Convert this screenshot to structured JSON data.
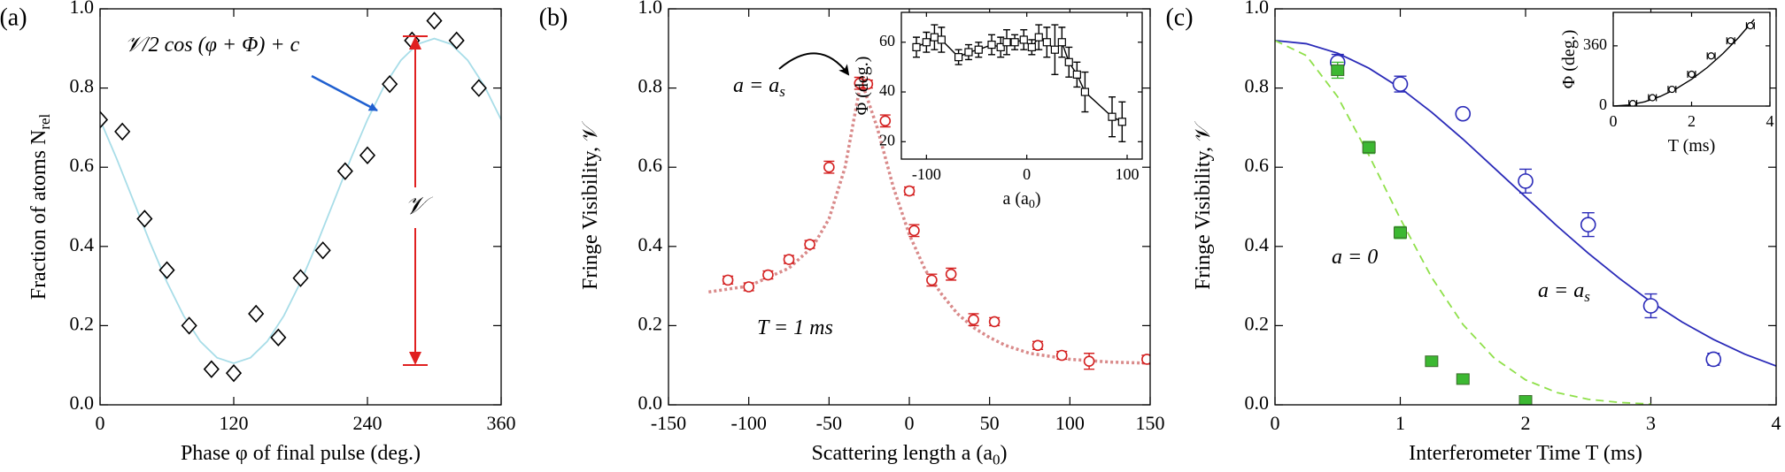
{
  "chart_data": [
    {
      "type": "scatter",
      "panel_label": "(a)",
      "xlabel": [
        "Phase φ of final pulse (deg.)"
      ],
      "ylabel": [
        "Fraction of atoms N",
        "rel"
      ],
      "xlim": [
        0,
        360
      ],
      "ylim": [
        0,
        1
      ],
      "xticks": [
        0,
        120,
        240,
        360
      ],
      "yticks": [
        {
          "value": 0,
          "label": "0.0"
        },
        0.2,
        0.4,
        0.6,
        0.8,
        {
          "value": 1,
          "label": "1.0"
        }
      ],
      "series": [
        {
          "color": "#a8dde8",
          "line": "solid",
          "marker": "none",
          "x": [
            0,
            15,
            30,
            45,
            60,
            75,
            90,
            105,
            120,
            135,
            150,
            165,
            180,
            195,
            210,
            225,
            240,
            255,
            270,
            285,
            300,
            315,
            330,
            345,
            360
          ],
          "values": [
            0.72,
            0.621,
            0.515,
            0.409,
            0.31,
            0.225,
            0.16,
            0.119,
            0.105,
            0.119,
            0.16,
            0.225,
            0.31,
            0.409,
            0.515,
            0.621,
            0.72,
            0.805,
            0.87,
            0.911,
            0.925,
            0.911,
            0.87,
            0.805,
            0.72
          ]
        },
        {
          "color": "#000000",
          "line": "none",
          "marker": "diamond",
          "x": [
            0,
            20,
            40,
            60,
            80,
            100,
            120,
            140,
            160,
            180,
            200,
            220,
            240,
            260,
            280,
            300,
            320,
            340
          ],
          "values": [
            0.72,
            0.69,
            0.47,
            0.34,
            0.2,
            0.09,
            0.08,
            0.23,
            0.17,
            0.32,
            0.39,
            0.59,
            0.63,
            0.81,
            0.92,
            0.97,
            0.92,
            0.8
          ]
        }
      ],
      "annotations": [
        {
          "parts": [
            "𝒱/2 cos (φ + Φ) + c"
          ]
        },
        {
          "parts": [
            "𝒱"
          ]
        }
      ]
    },
    {
      "type": "scatter",
      "panel_label": "(b)",
      "xlabel": [
        "Scattering length a (a",
        "0",
        ")"
      ],
      "ylabel": [
        "Fringe Visibility, 𝒱"
      ],
      "xlim": [
        -150,
        150
      ],
      "ylim": [
        0,
        1
      ],
      "xticks": [
        -150,
        -100,
        -50,
        0,
        50,
        100,
        150
      ],
      "yticks": [
        {
          "value": 0,
          "label": "0.0"
        },
        0.2,
        0.4,
        0.6,
        0.8,
        {
          "value": 1,
          "label": "1.0"
        }
      ],
      "series": [
        {
          "color": "#d98a8a",
          "line": "dotted",
          "marker": "none",
          "x": [
            -125,
            -100,
            -75,
            -60,
            -50,
            -40,
            -30,
            -20,
            -10,
            0,
            10,
            20,
            30,
            40,
            50,
            60,
            75,
            100,
            125,
            150
          ],
          "values": [
            0.285,
            0.3,
            0.345,
            0.4,
            0.47,
            0.6,
            0.82,
            0.7,
            0.55,
            0.43,
            0.34,
            0.28,
            0.23,
            0.195,
            0.17,
            0.15,
            0.13,
            0.115,
            0.108,
            0.105
          ]
        },
        {
          "color": "#d42020",
          "line": "none",
          "marker": "circle",
          "x": [
            -113,
            -100,
            -88,
            -75,
            -62,
            -50,
            -31,
            -26,
            -15,
            0,
            3,
            14,
            26,
            40,
            53,
            80,
            95,
            112,
            148
          ],
          "values": [
            0.315,
            0.298,
            0.328,
            0.367,
            0.405,
            0.6,
            0.812,
            0.81,
            0.717,
            0.54,
            0.44,
            0.315,
            0.33,
            0.215,
            0.21,
            0.15,
            0.125,
            0.11,
            0.115
          ],
          "errors": [
            0.01,
            0.01,
            0.01,
            0.01,
            0.01,
            0.015,
            0.015,
            0.01,
            0.015,
            0.01,
            0.015,
            0.015,
            0.015,
            0.015,
            0.01,
            0.01,
            0.01,
            0.02,
            0.01
          ]
        }
      ],
      "annotations": [
        {
          "parts": [
            "a = a",
            "s"
          ]
        },
        {
          "parts": [
            "T = 1 ms"
          ]
        }
      ]
    },
    {
      "type": "scatter",
      "xlabel": [
        "a (a",
        "0",
        ")"
      ],
      "ylabel": [
        "Φ (deg.)"
      ],
      "xlim": [
        -125,
        115
      ],
      "ylim": [
        13,
        72
      ],
      "xticks": [
        -100,
        0,
        100
      ],
      "yticks": [
        20,
        40,
        60
      ],
      "series": [
        {
          "color": "#000000",
          "line": "solid",
          "marker": "square",
          "x": [
            -110,
            -100,
            -92,
            -85,
            -68,
            -58,
            -48,
            -35,
            -26,
            -20,
            -12,
            -3,
            5,
            12,
            20,
            28,
            35,
            42,
            50,
            58,
            85,
            95
          ],
          "values": [
            58,
            60,
            62,
            61,
            54,
            56,
            57,
            59,
            58,
            60,
            60,
            61,
            58,
            62,
            60,
            57,
            60,
            52,
            47,
            40,
            30,
            28
          ],
          "errors": [
            4,
            4,
            5,
            5,
            3,
            3,
            3,
            4,
            4,
            5,
            3,
            4,
            3,
            5,
            6,
            10,
            6,
            6,
            5,
            8,
            8,
            8
          ]
        }
      ],
      "annotations": []
    },
    {
      "type": "scatter",
      "panel_label": "(c)",
      "xlabel": [
        "Interferometer Time T (ms)"
      ],
      "ylabel": [
        "Fringe Visibility, 𝒱"
      ],
      "xlim": [
        0,
        4
      ],
      "ylim": [
        0,
        1
      ],
      "xticks": [
        0,
        1,
        2,
        3,
        4
      ],
      "yticks": [
        {
          "value": 0,
          "label": "0.0"
        },
        0.2,
        0.4,
        0.6,
        0.8,
        {
          "value": 1,
          "label": "1.0"
        }
      ],
      "series": [
        {
          "color": "#2a2ab8",
          "line": "solid",
          "marker": "none",
          "x": [
            0,
            0.25,
            0.5,
            0.75,
            1,
            1.25,
            1.5,
            1.75,
            2,
            2.25,
            2.5,
            2.75,
            3,
            3.25,
            3.5,
            3.75,
            4
          ],
          "values": [
            0.92,
            0.912,
            0.888,
            0.85,
            0.8,
            0.739,
            0.671,
            0.598,
            0.525,
            0.452,
            0.383,
            0.319,
            0.26,
            0.209,
            0.165,
            0.128,
            0.098
          ]
        },
        {
          "color": "#8fe04a",
          "line": "dashed",
          "marker": "none",
          "x": [
            0,
            0.25,
            0.5,
            0.75,
            1,
            1.25,
            1.5,
            1.75,
            2,
            2.25,
            2.5,
            2.75,
            3
          ],
          "values": [
            0.92,
            0.882,
            0.778,
            0.63,
            0.47,
            0.322,
            0.203,
            0.118,
            0.063,
            0.031,
            0.014,
            0.006,
            0.002
          ]
        },
        {
          "color": "#2a2ab8",
          "line": "none",
          "marker": "circle-large",
          "x": [
            0.5,
            1,
            1.5,
            2,
            2.5,
            3,
            3.5
          ],
          "values": [
            0.865,
            0.81,
            0.735,
            0.565,
            0.455,
            0.25,
            0.115
          ],
          "errors": [
            0.02,
            0.02,
            0.01,
            0.03,
            0.03,
            0.03,
            0.015
          ]
        },
        {
          "color": "#3cb832",
          "line": "none",
          "marker": "square-filled",
          "x": [
            0.5,
            0.75,
            1,
            1.25,
            1.5,
            2
          ],
          "values": [
            0.845,
            0.65,
            0.435,
            0.11,
            0.065,
            0.01
          ],
          "errors": [
            0.02,
            0.015,
            0.015,
            0.01,
            0.01,
            0.01
          ]
        }
      ],
      "annotations": [
        {
          "parts": [
            "a = 0"
          ]
        },
        {
          "parts": [
            "a = a",
            "s"
          ]
        }
      ]
    },
    {
      "type": "scatter",
      "xlabel": [
        "T (ms)"
      ],
      "ylabel": [
        "Φ (deg.)"
      ],
      "xlim": [
        0,
        4
      ],
      "ylim": [
        0,
        560
      ],
      "xticks": [
        0,
        2,
        4
      ],
      "yticks": [
        0,
        360
      ],
      "series": [
        {
          "color": "#000000",
          "line": "solid",
          "marker": "none",
          "x": [
            0,
            0.4,
            0.8,
            1.2,
            1.6,
            2,
            2.4,
            2.8,
            3.2,
            3.6
          ],
          "values": [
            0,
            6.4,
            25.6,
            57.6,
            102.4,
            160,
            230.4,
            313.6,
            409.6,
            518.4
          ]
        },
        {
          "color": "#000000",
          "line": "none",
          "marker": "circle-small",
          "x": [
            0.5,
            1,
            1.5,
            2,
            2.5,
            3,
            3.5
          ],
          "values": [
            15,
            50,
            100,
            190,
            300,
            390,
            480
          ],
          "xerrors": [
            0.1,
            0.1,
            0.1,
            0.1,
            0.1,
            0.1,
            0.1
          ]
        }
      ],
      "annotations": []
    }
  ]
}
